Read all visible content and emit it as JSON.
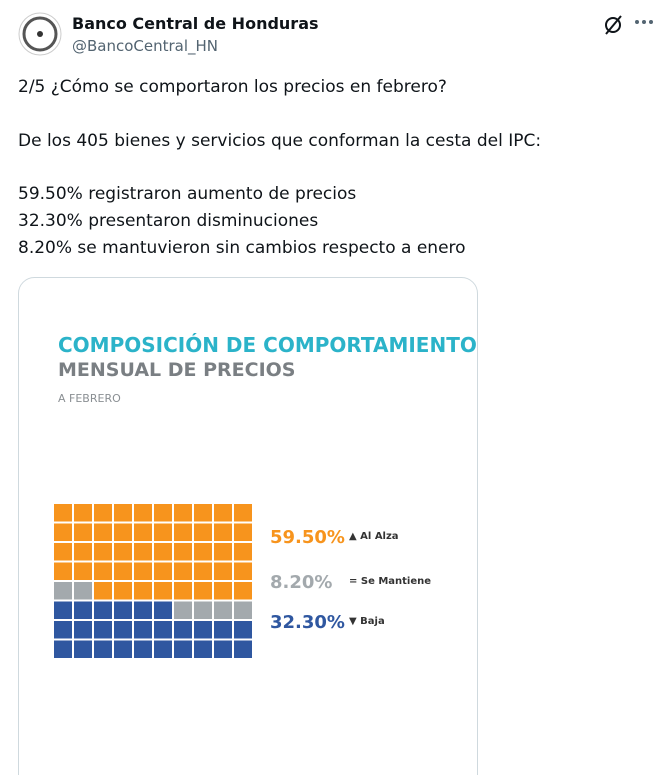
{
  "header": {
    "name": "Banco Central de Honduras",
    "handle": "@BancoCentral_HN"
  },
  "body": {
    "lines": [
      "2/5 ¿Cómo se comportaron los precios en febrero?",
      "De los 405 bienes y servicios que conforman la cesta del IPC:",
      "59.50% registraron aumento de precios",
      "32.30% presentaron disminuciones",
      "8.20% se mantuvieron sin cambios respecto a enero"
    ]
  },
  "chart_data": {
    "type": "waffle",
    "title": "COMPOSICIÓN DE COMPORTAMIENTO",
    "subtitle": "MENSUAL DE PRECIOS",
    "note": "A FEBRERO",
    "series": [
      {
        "name": "▲ Al Alza",
        "color": "#f7941d",
        "values": [
          59.5
        ],
        "value_labels": [
          "59.50%"
        ]
      },
      {
        "name": "= Se Mantiene",
        "color": "#a3a9ad",
        "values": [
          8.2
        ],
        "value_labels": [
          "8.20%"
        ]
      },
      {
        "name": "▼ Baja",
        "color": "#2f57a0",
        "values": [
          32.3
        ],
        "value_labels": [
          "32.30%"
        ]
      }
    ]
  }
}
